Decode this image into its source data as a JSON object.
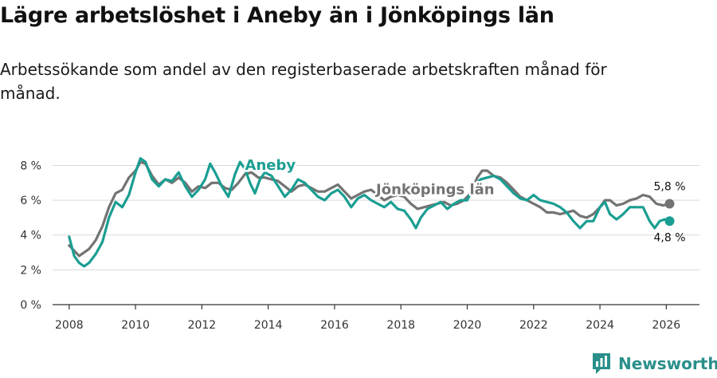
{
  "header": {
    "title": "Lägre arbetslöshet i Aneby än i Jönköpings län",
    "subtitle": "Arbetssökande som andel av den registerbaserade arbetskraften månad för månad."
  },
  "brand": {
    "name": "Newsworthy"
  },
  "chart_data": {
    "type": "line",
    "title": "Lägre arbetslöshet i Aneby än i Jönköpings län",
    "subtitle": "Arbetssökande som andel av den registerbaserade arbetskraften månad för månad.",
    "xlabel": "",
    "ylabel": "",
    "xlim": [
      2007.5,
      2027.0
    ],
    "ylim": [
      0,
      8.8
    ],
    "y_ticks": [
      0,
      2,
      4,
      6,
      8
    ],
    "y_tick_labels": [
      "0 %",
      "2 %",
      "4 %",
      "6 %",
      "8 %"
    ],
    "x_ticks": [
      2008,
      2010,
      2012,
      2014,
      2016,
      2018,
      2020,
      2022,
      2024,
      2026
    ],
    "x_tick_labels": [
      "2008",
      "2010",
      "2012",
      "2014",
      "2016",
      "2018",
      "2020",
      "2022",
      "2024",
      "2026"
    ],
    "grid": true,
    "series": [
      {
        "name": "Jönköpings län",
        "label": "Jönköpings län",
        "color": "#737373",
        "end_label": "5,8 %",
        "points": [
          [
            2008.0,
            3.4
          ],
          [
            2008.3,
            2.8
          ],
          [
            2008.6,
            3.2
          ],
          [
            2008.8,
            3.7
          ],
          [
            2009.0,
            4.5
          ],
          [
            2009.2,
            5.6
          ],
          [
            2009.4,
            6.4
          ],
          [
            2009.6,
            6.6
          ],
          [
            2009.8,
            7.3
          ],
          [
            2010.0,
            7.7
          ],
          [
            2010.15,
            8.2
          ],
          [
            2010.3,
            8.1
          ],
          [
            2010.5,
            7.4
          ],
          [
            2010.7,
            6.9
          ],
          [
            2010.9,
            7.2
          ],
          [
            2011.1,
            7.0
          ],
          [
            2011.3,
            7.3
          ],
          [
            2011.5,
            7.0
          ],
          [
            2011.7,
            6.5
          ],
          [
            2011.9,
            6.8
          ],
          [
            2012.1,
            6.7
          ],
          [
            2012.3,
            7.0
          ],
          [
            2012.5,
            7.0
          ],
          [
            2012.7,
            6.7
          ],
          [
            2012.9,
            6.6
          ],
          [
            2013.1,
            7.0
          ],
          [
            2013.3,
            7.5
          ],
          [
            2013.5,
            7.6
          ],
          [
            2013.7,
            7.3
          ],
          [
            2013.9,
            7.3
          ],
          [
            2014.1,
            7.2
          ],
          [
            2014.3,
            7.1
          ],
          [
            2014.5,
            6.8
          ],
          [
            2014.7,
            6.5
          ],
          [
            2014.9,
            6.8
          ],
          [
            2015.1,
            6.9
          ],
          [
            2015.3,
            6.7
          ],
          [
            2015.5,
            6.5
          ],
          [
            2015.7,
            6.5
          ],
          [
            2015.9,
            6.7
          ],
          [
            2016.1,
            6.9
          ],
          [
            2016.3,
            6.5
          ],
          [
            2016.5,
            6.1
          ],
          [
            2016.7,
            6.3
          ],
          [
            2016.9,
            6.5
          ],
          [
            2017.1,
            6.6
          ],
          [
            2017.3,
            6.3
          ],
          [
            2017.5,
            6.0
          ],
          [
            2017.7,
            6.2
          ],
          [
            2017.9,
            6.3
          ],
          [
            2018.1,
            6.2
          ],
          [
            2018.3,
            5.8
          ],
          [
            2018.5,
            5.5
          ],
          [
            2018.7,
            5.6
          ],
          [
            2018.9,
            5.7
          ],
          [
            2019.1,
            5.8
          ],
          [
            2019.3,
            5.9
          ],
          [
            2019.5,
            5.7
          ],
          [
            2019.7,
            5.8
          ],
          [
            2019.9,
            6.0
          ],
          [
            2020.1,
            6.4
          ],
          [
            2020.3,
            7.3
          ],
          [
            2020.45,
            7.7
          ],
          [
            2020.6,
            7.7
          ],
          [
            2020.8,
            7.4
          ],
          [
            2021.0,
            7.3
          ],
          [
            2021.2,
            7.0
          ],
          [
            2021.4,
            6.6
          ],
          [
            2021.6,
            6.2
          ],
          [
            2021.8,
            6.0
          ],
          [
            2022.0,
            5.8
          ],
          [
            2022.2,
            5.6
          ],
          [
            2022.4,
            5.3
          ],
          [
            2022.6,
            5.3
          ],
          [
            2022.8,
            5.2
          ],
          [
            2023.0,
            5.3
          ],
          [
            2023.2,
            5.4
          ],
          [
            2023.4,
            5.1
          ],
          [
            2023.6,
            5.0
          ],
          [
            2023.8,
            5.2
          ],
          [
            2024.0,
            5.6
          ],
          [
            2024.15,
            6.0
          ],
          [
            2024.3,
            6.0
          ],
          [
            2024.5,
            5.7
          ],
          [
            2024.7,
            5.8
          ],
          [
            2024.9,
            6.0
          ],
          [
            2025.1,
            6.1
          ],
          [
            2025.3,
            6.3
          ],
          [
            2025.5,
            6.2
          ],
          [
            2025.7,
            5.8
          ],
          [
            2025.9,
            5.7
          ],
          [
            2026.1,
            5.8
          ]
        ]
      },
      {
        "name": "Aneby",
        "label": "Aneby",
        "color": "#1a9e92",
        "end_label": "4,8 %",
        "points": [
          [
            2008.0,
            3.9
          ],
          [
            2008.15,
            2.8
          ],
          [
            2008.3,
            2.4
          ],
          [
            2008.45,
            2.2
          ],
          [
            2008.6,
            2.4
          ],
          [
            2008.8,
            2.9
          ],
          [
            2009.0,
            3.6
          ],
          [
            2009.2,
            5.0
          ],
          [
            2009.4,
            5.9
          ],
          [
            2009.6,
            5.6
          ],
          [
            2009.8,
            6.3
          ],
          [
            2010.0,
            7.6
          ],
          [
            2010.15,
            8.4
          ],
          [
            2010.3,
            8.2
          ],
          [
            2010.5,
            7.2
          ],
          [
            2010.7,
            6.8
          ],
          [
            2010.9,
            7.2
          ],
          [
            2011.1,
            7.1
          ],
          [
            2011.3,
            7.6
          ],
          [
            2011.5,
            6.8
          ],
          [
            2011.7,
            6.2
          ],
          [
            2011.9,
            6.6
          ],
          [
            2012.1,
            7.2
          ],
          [
            2012.25,
            8.1
          ],
          [
            2012.4,
            7.6
          ],
          [
            2012.6,
            6.8
          ],
          [
            2012.8,
            6.2
          ],
          [
            2013.0,
            7.5
          ],
          [
            2013.15,
            8.2
          ],
          [
            2013.3,
            7.8
          ],
          [
            2013.45,
            7.0
          ],
          [
            2013.6,
            6.4
          ],
          [
            2013.75,
            7.2
          ],
          [
            2013.9,
            7.6
          ],
          [
            2014.1,
            7.4
          ],
          [
            2014.3,
            6.8
          ],
          [
            2014.5,
            6.2
          ],
          [
            2014.7,
            6.6
          ],
          [
            2014.9,
            7.2
          ],
          [
            2015.1,
            7.0
          ],
          [
            2015.3,
            6.6
          ],
          [
            2015.5,
            6.2
          ],
          [
            2015.7,
            6.0
          ],
          [
            2015.9,
            6.4
          ],
          [
            2016.1,
            6.6
          ],
          [
            2016.3,
            6.2
          ],
          [
            2016.5,
            5.6
          ],
          [
            2016.7,
            6.1
          ],
          [
            2016.9,
            6.3
          ],
          [
            2017.1,
            6.0
          ],
          [
            2017.3,
            5.8
          ],
          [
            2017.5,
            5.6
          ],
          [
            2017.7,
            5.9
          ],
          [
            2017.9,
            5.5
          ],
          [
            2018.1,
            5.4
          ],
          [
            2018.3,
            4.9
          ],
          [
            2018.45,
            4.4
          ],
          [
            2018.6,
            5.0
          ],
          [
            2018.8,
            5.5
          ],
          [
            2019.0,
            5.7
          ],
          [
            2019.2,
            5.9
          ],
          [
            2019.4,
            5.5
          ],
          [
            2019.6,
            5.8
          ],
          [
            2019.8,
            6.0
          ],
          [
            2020.0,
            6.0
          ],
          [
            2020.2,
            6.8
          ],
          [
            2020.4,
            7.2
          ],
          [
            2020.6,
            7.3
          ],
          [
            2020.8,
            7.4
          ],
          [
            2021.0,
            7.2
          ],
          [
            2021.2,
            6.8
          ],
          [
            2021.4,
            6.4
          ],
          [
            2021.6,
            6.1
          ],
          [
            2021.8,
            6.0
          ],
          [
            2022.0,
            6.3
          ],
          [
            2022.2,
            6.0
          ],
          [
            2022.4,
            5.9
          ],
          [
            2022.6,
            5.8
          ],
          [
            2022.8,
            5.6
          ],
          [
            2023.0,
            5.3
          ],
          [
            2023.2,
            4.8
          ],
          [
            2023.4,
            4.4
          ],
          [
            2023.6,
            4.8
          ],
          [
            2023.8,
            4.8
          ],
          [
            2024.0,
            5.6
          ],
          [
            2024.15,
            5.9
          ],
          [
            2024.3,
            5.2
          ],
          [
            2024.5,
            4.9
          ],
          [
            2024.7,
            5.2
          ],
          [
            2024.9,
            5.6
          ],
          [
            2025.1,
            5.6
          ],
          [
            2025.3,
            5.6
          ],
          [
            2025.5,
            4.8
          ],
          [
            2025.65,
            4.4
          ],
          [
            2025.8,
            4.8
          ],
          [
            2025.95,
            4.9
          ],
          [
            2026.1,
            4.8
          ]
        ]
      }
    ]
  }
}
